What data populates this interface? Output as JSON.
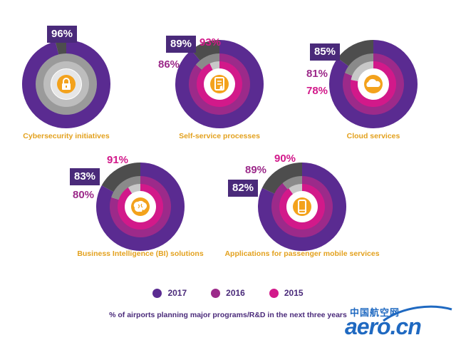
{
  "colors": {
    "y2017": "#5a2b91",
    "y2016": "#9c2a8a",
    "y2015": "#d2198a",
    "remainder_dark": "#4d4d4d",
    "remainder_mid": "#8a8a8a",
    "remainder_light": "#c8c8c8",
    "label": "#e3a11e",
    "icon_bg": "#f3a21c"
  },
  "chart_data": {
    "type": "pie",
    "subtype": "concentric-donuts",
    "legend": [
      "2017",
      "2016",
      "2015"
    ],
    "legend_position": "bottom-center",
    "footnote": "% of airports planning major programs/R&D in the next three years",
    "charts": [
      {
        "name": "Cybersecurity initiatives",
        "icon": "lock-icon",
        "values": {
          "2017": 96
        },
        "labels": {
          "2017": "96%"
        }
      },
      {
        "name": "Self-service processes",
        "icon": "kiosk-icon",
        "values": {
          "2017": 89,
          "2016": 86,
          "2015": 93
        },
        "labels": {
          "2017": "89%",
          "2016": "86%",
          "2015": "93%"
        }
      },
      {
        "name": "Cloud services",
        "icon": "cloud-icon",
        "values": {
          "2017": 85,
          "2016": 81,
          "2015": 78
        },
        "labels": {
          "2017": "85%",
          "2016": "81%",
          "2015": "78%"
        }
      },
      {
        "name": "Business Intelligence (BI) solutions",
        "icon": "brain-icon",
        "values": {
          "2017": 83,
          "2016": 80,
          "2015": 91
        },
        "labels": {
          "2017": "83%",
          "2016": "80%",
          "2015": "91%"
        }
      },
      {
        "name": "Applications for passenger mobile services",
        "icon": "mobile-phone-icon",
        "values": {
          "2017": 82,
          "2016": 89,
          "2015": 90
        },
        "labels": {
          "2017": "82%",
          "2016": "89%",
          "2015": "90%"
        }
      }
    ]
  },
  "watermark": {
    "cn": "中国航空网",
    "en": "aero.cn"
  }
}
